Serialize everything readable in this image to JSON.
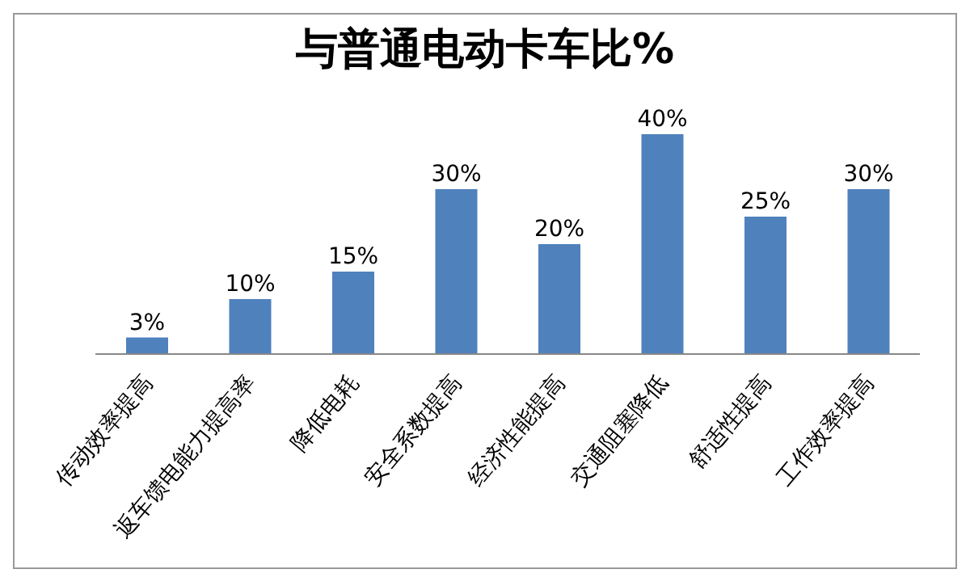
{
  "chart_data": {
    "type": "bar",
    "title": "与普通电动卡车比%",
    "categories": [
      "传动效率提高",
      "返车馈电能力提高率",
      "降低电耗",
      "安全系数提高",
      "经济性能提高",
      "交通阻塞降低",
      "舒适性提高",
      "工作效率提高"
    ],
    "values": [
      3,
      10,
      15,
      30,
      20,
      40,
      25,
      30
    ],
    "value_labels": [
      "3%",
      "10%",
      "15%",
      "30%",
      "20%",
      "40%",
      "25%",
      "30%"
    ],
    "color": "#4f81bd",
    "grid": false,
    "legend": false
  }
}
